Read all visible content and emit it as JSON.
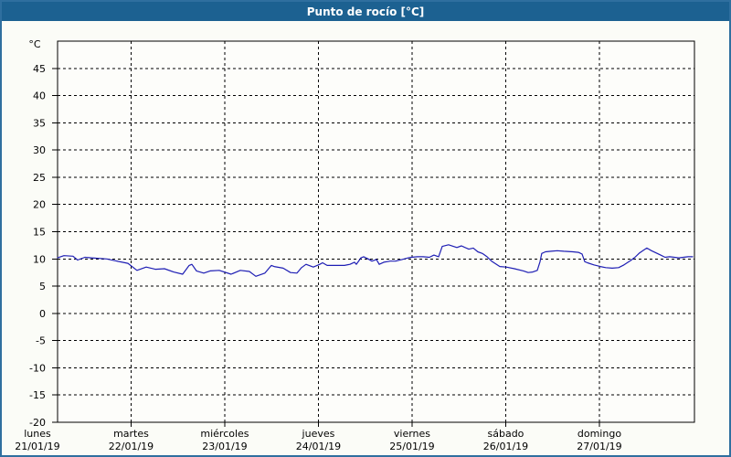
{
  "window": {
    "title": "Punto de rocío [°C]",
    "title_bar_color": "#1c6191",
    "border_color": "#2f6f9f",
    "background_color": "#fbfcf7",
    "text_color": "#000000"
  },
  "chart_data": {
    "type": "line",
    "title": "Punto de rocío [°C]",
    "ylabel": "°C",
    "xlabel": "",
    "ylim": [
      -20,
      50
    ],
    "yticks": [
      45,
      40,
      35,
      30,
      25,
      20,
      15,
      10,
      5,
      0,
      -5,
      -10,
      -15,
      -20
    ],
    "grid": "dashed",
    "legend_position": "none",
    "line_color": "#1e1eb4",
    "x_axis": {
      "unit": "days",
      "start_day": 0.215,
      "end_day": 7.015,
      "day_ticks": [
        {
          "t": 0,
          "label": "lunes",
          "date": "21/01/19"
        },
        {
          "t": 1,
          "label": "martes",
          "date": "22/01/19"
        },
        {
          "t": 2,
          "label": "miércoles",
          "date": "23/01/19"
        },
        {
          "t": 3,
          "label": "jueves",
          "date": "24/01/19"
        },
        {
          "t": 4,
          "label": "viernes",
          "date": "25/01/19"
        },
        {
          "t": 5,
          "label": "sábado",
          "date": "26/01/19"
        },
        {
          "t": 6,
          "label": "domingo",
          "date": "27/01/19"
        }
      ]
    },
    "series": [
      {
        "name": "Punto de rocío",
        "points": [
          [
            0.215,
            10.2
          ],
          [
            0.283,
            10.6
          ],
          [
            0.38,
            10.5
          ],
          [
            0.429,
            9.8
          ],
          [
            0.507,
            10.3
          ],
          [
            0.576,
            10.2
          ],
          [
            0.741,
            10.0
          ],
          [
            0.82,
            9.7
          ],
          [
            0.966,
            9.2
          ],
          [
            1.063,
            7.9
          ],
          [
            1.161,
            8.5
          ],
          [
            1.259,
            8.1
          ],
          [
            1.356,
            8.2
          ],
          [
            1.454,
            7.6
          ],
          [
            1.551,
            7.2
          ],
          [
            1.62,
            8.8
          ],
          [
            1.649,
            9.0
          ],
          [
            1.698,
            7.8
          ],
          [
            1.776,
            7.4
          ],
          [
            1.844,
            7.8
          ],
          [
            1.941,
            7.9
          ],
          [
            2.068,
            7.2
          ],
          [
            2.166,
            7.9
          ],
          [
            2.263,
            7.7
          ],
          [
            2.332,
            6.8
          ],
          [
            2.429,
            7.4
          ],
          [
            2.498,
            8.8
          ],
          [
            2.527,
            8.6
          ],
          [
            2.624,
            8.3
          ],
          [
            2.702,
            7.5
          ],
          [
            2.771,
            7.4
          ],
          [
            2.82,
            8.4
          ],
          [
            2.868,
            9.0
          ],
          [
            2.946,
            8.5
          ],
          [
            3.015,
            9.0
          ],
          [
            3.044,
            9.3
          ],
          [
            3.093,
            8.8
          ],
          [
            3.18,
            8.8
          ],
          [
            3.278,
            8.8
          ],
          [
            3.337,
            9.0
          ],
          [
            3.385,
            9.4
          ],
          [
            3.405,
            9.0
          ],
          [
            3.454,
            10.2
          ],
          [
            3.483,
            10.4
          ],
          [
            3.532,
            10.0
          ],
          [
            3.571,
            9.6
          ],
          [
            3.62,
            9.9
          ],
          [
            3.649,
            9.0
          ],
          [
            3.698,
            9.4
          ],
          [
            3.766,
            9.6
          ],
          [
            3.824,
            9.6
          ],
          [
            3.893,
            9.9
          ],
          [
            3.961,
            10.2
          ],
          [
            3.99,
            10.3
          ],
          [
            4.059,
            10.4
          ],
          [
            4.117,
            10.4
          ],
          [
            4.185,
            10.3
          ],
          [
            4.234,
            10.7
          ],
          [
            4.283,
            10.4
          ],
          [
            4.322,
            12.3
          ],
          [
            4.39,
            12.6
          ],
          [
            4.478,
            12.1
          ],
          [
            4.527,
            12.4
          ],
          [
            4.605,
            11.8
          ],
          [
            4.654,
            12.0
          ],
          [
            4.702,
            11.3
          ],
          [
            4.751,
            11.0
          ],
          [
            4.8,
            10.4
          ],
          [
            4.849,
            9.6
          ],
          [
            4.937,
            8.6
          ],
          [
            5.005,
            8.5
          ],
          [
            5.093,
            8.2
          ],
          [
            5.19,
            7.8
          ],
          [
            5.239,
            7.5
          ],
          [
            5.288,
            7.6
          ],
          [
            5.337,
            7.9
          ],
          [
            5.366,
            9.5
          ],
          [
            5.385,
            11.0
          ],
          [
            5.424,
            11.3
          ],
          [
            5.483,
            11.4
          ],
          [
            5.551,
            11.5
          ],
          [
            5.62,
            11.4
          ],
          [
            5.717,
            11.3
          ],
          [
            5.776,
            11.2
          ],
          [
            5.815,
            10.9
          ],
          [
            5.844,
            9.5
          ],
          [
            5.873,
            9.3
          ],
          [
            5.941,
            8.9
          ],
          [
            6.01,
            8.6
          ],
          [
            6.068,
            8.4
          ],
          [
            6.137,
            8.3
          ],
          [
            6.205,
            8.4
          ],
          [
            6.263,
            8.9
          ],
          [
            6.332,
            9.7
          ],
          [
            6.38,
            10.3
          ],
          [
            6.429,
            11.1
          ],
          [
            6.478,
            11.7
          ],
          [
            6.507,
            12.0
          ],
          [
            6.556,
            11.5
          ],
          [
            6.605,
            11.1
          ],
          [
            6.654,
            10.7
          ],
          [
            6.702,
            10.3
          ],
          [
            6.751,
            10.4
          ],
          [
            6.8,
            10.3
          ],
          [
            6.849,
            10.2
          ],
          [
            6.898,
            10.3
          ],
          [
            6.946,
            10.4
          ],
          [
            6.995,
            10.4
          ]
        ]
      }
    ]
  }
}
